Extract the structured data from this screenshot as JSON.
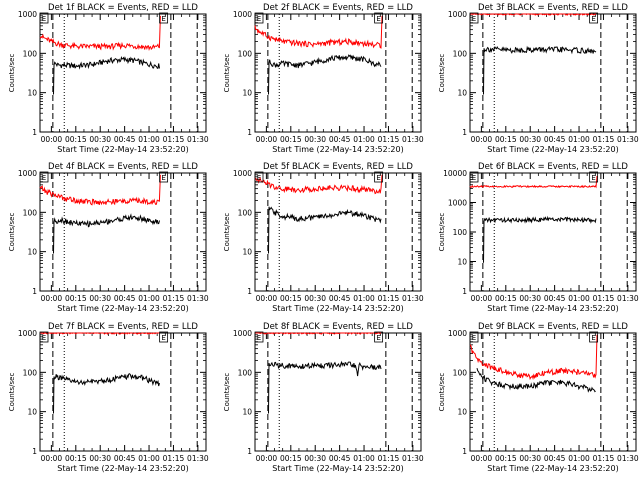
{
  "figure": {
    "x_axis_label": "Start Time (22-May-14 23:52:20)",
    "y_axis_label": "Counts/sec",
    "x_tick_labels": [
      "00:00",
      "00:15",
      "00:30",
      "00:45",
      "01:00",
      "01:15",
      "01:30"
    ],
    "y_tick_labels": [
      "1",
      "10",
      "100",
      "1000"
    ],
    "flag_labels": [
      "E",
      "E"
    ],
    "colors": {
      "events": "#000000",
      "lld": "#ff0000",
      "background": "#ffffff"
    }
  },
  "chart_data": [
    {
      "type": "line",
      "title": "Det 1f BLACK = Events, RED = LLD",
      "xlim": [
        -7,
        95
      ],
      "ylim": [
        1,
        1000
      ],
      "yscale": "log",
      "vlines": {
        "dashed": [
          0.9,
          73.4,
          89.6
        ],
        "dotted": [
          7.9
        ]
      },
      "series": [
        {
          "color": "#000000",
          "start_min": 1.6,
          "end_min": 66.5,
          "spike_to": 9,
          "x": [
            2.5,
            4,
            8,
            15,
            25,
            35,
            45,
            52,
            58,
            63,
            66
          ],
          "y": [
            55,
            50,
            50,
            48,
            52,
            65,
            70,
            65,
            55,
            50,
            48
          ]
        },
        {
          "color": "#ff0000",
          "start_min": -7,
          "end_min": 66.5,
          "rise_to": 900,
          "x": [
            -7,
            -5,
            -2,
            0,
            5,
            10,
            15,
            25,
            35,
            45,
            55,
            62,
            66
          ],
          "y": [
            300,
            250,
            220,
            200,
            170,
            160,
            150,
            150,
            150,
            160,
            150,
            140,
            150
          ]
        }
      ]
    },
    {
      "type": "line",
      "title": "Det 2f BLACK = Events, RED = LLD",
      "xlim": [
        -7,
        95
      ],
      "ylim": [
        1,
        1000
      ],
      "yscale": "log",
      "vlines": {
        "dashed": [
          0.9,
          73.4,
          89.6
        ],
        "dotted": [
          7.9
        ]
      },
      "series": [
        {
          "color": "#000000",
          "start_min": 1.6,
          "end_min": 70.5,
          "spike_to": 9,
          "x": [
            2.5,
            5,
            10,
            20,
            30,
            40,
            50,
            60,
            66,
            70
          ],
          "y": [
            60,
            50,
            55,
            50,
            60,
            75,
            80,
            70,
            55,
            50
          ]
        },
        {
          "color": "#ff0000",
          "start_min": -7,
          "end_min": 70.5,
          "rise_to": 900,
          "x": [
            -7,
            -4,
            0,
            5,
            10,
            20,
            30,
            40,
            50,
            60,
            70
          ],
          "y": [
            450,
            350,
            280,
            230,
            200,
            180,
            170,
            190,
            200,
            180,
            160
          ]
        }
      ]
    },
    {
      "type": "line",
      "title": "Det 3f BLACK = Events, RED = LLD",
      "xlim": [
        -7,
        95
      ],
      "ylim": [
        1,
        1000
      ],
      "yscale": "log",
      "vlines": {
        "dashed": [
          0.9,
          73.4,
          89.6
        ],
        "dotted": [
          7.9
        ]
      },
      "series": [
        {
          "color": "#000000",
          "start_min": 1.6,
          "end_min": 70.5,
          "spike_to": 9,
          "x": [
            2.5,
            10,
            20,
            30,
            40,
            50,
            60,
            70
          ],
          "y": [
            130,
            125,
            120,
            125,
            125,
            125,
            120,
            110
          ]
        },
        {
          "color": "#ff0000",
          "start_min": -7,
          "end_min": 70.5,
          "x": [
            -7,
            70
          ],
          "y": [
            1000,
            1000
          ]
        }
      ]
    },
    {
      "type": "line",
      "title": "Det 4f BLACK = Events, RED = LLD",
      "xlim": [
        -7,
        95
      ],
      "ylim": [
        1,
        1000
      ],
      "yscale": "log",
      "vlines": {
        "dashed": [
          0.9,
          73.4,
          89.6
        ],
        "dotted": [
          7.9
        ]
      },
      "series": [
        {
          "color": "#000000",
          "start_min": 1.6,
          "end_min": 66.5,
          "spike_to": 9,
          "x": [
            2.5,
            6,
            12,
            20,
            30,
            40,
            48,
            55,
            62,
            66
          ],
          "y": [
            60,
            65,
            55,
            50,
            55,
            65,
            75,
            70,
            60,
            55
          ]
        },
        {
          "color": "#ff0000",
          "start_min": -7,
          "end_min": 66.5,
          "rise_to": 900,
          "x": [
            -7,
            -4,
            0,
            5,
            10,
            20,
            30,
            40,
            50,
            60,
            66
          ],
          "y": [
            450,
            350,
            300,
            250,
            220,
            190,
            180,
            190,
            200,
            190,
            180
          ]
        }
      ]
    },
    {
      "type": "line",
      "title": "Det 5f BLACK = Events, RED = LLD",
      "xlim": [
        -7,
        95
      ],
      "ylim": [
        1,
        1000
      ],
      "yscale": "log",
      "vlines": {
        "dashed": [
          0.9,
          73.4,
          89.6
        ],
        "dotted": [
          7.9
        ]
      },
      "series": [
        {
          "color": "#000000",
          "start_min": 1.6,
          "end_min": 70.5,
          "spike_to": 9,
          "x": [
            2.5,
            5,
            10,
            20,
            30,
            40,
            50,
            60,
            66,
            70
          ],
          "y": [
            120,
            100,
            80,
            70,
            75,
            85,
            100,
            85,
            70,
            60
          ]
        },
        {
          "color": "#ff0000",
          "start_min": -7,
          "end_min": 70.5,
          "rise_to": 900,
          "x": [
            -7,
            -4,
            0,
            5,
            10,
            20,
            30,
            40,
            50,
            60,
            70
          ],
          "y": [
            800,
            650,
            550,
            450,
            400,
            380,
            400,
            430,
            420,
            380,
            350
          ]
        }
      ]
    },
    {
      "type": "line",
      "title": "Det 6f BLACK = Events, RED = LLD",
      "xlim": [
        -7,
        95
      ],
      "ylim": [
        1,
        10000
      ],
      "yscale": "log",
      "vlines": {
        "dashed": [
          0.9,
          73.4,
          89.6
        ],
        "dotted": [
          7.9
        ]
      },
      "series": [
        {
          "color": "#000000",
          "start_min": 1.6,
          "end_min": 70.5,
          "spike_to": 9,
          "x": [
            2.5,
            10,
            20,
            30,
            40,
            50,
            60,
            70
          ],
          "y": [
            250,
            260,
            250,
            260,
            270,
            270,
            260,
            250
          ]
        },
        {
          "color": "#ff0000",
          "start_min": -7,
          "end_min": 70.5,
          "rise_to": 8000,
          "x": [
            -7,
            70
          ],
          "y": [
            3500,
            3500
          ]
        }
      ]
    },
    {
      "type": "line",
      "title": "Det 7f BLACK = Events, RED = LLD",
      "xlim": [
        -7,
        95
      ],
      "ylim": [
        1,
        1000
      ],
      "yscale": "log",
      "vlines": {
        "dashed": [
          0.9,
          73.4,
          89.6
        ],
        "dotted": [
          7.9
        ]
      },
      "series": [
        {
          "color": "#000000",
          "start_min": 1.6,
          "end_min": 66.5,
          "spike_to": 9,
          "x": [
            2.5,
            6,
            12,
            20,
            30,
            40,
            48,
            55,
            62,
            66
          ],
          "y": [
            80,
            70,
            60,
            55,
            60,
            70,
            80,
            75,
            60,
            50
          ]
        },
        {
          "color": "#ff0000",
          "start_min": -7,
          "end_min": 66.5,
          "x": [
            -7,
            66
          ],
          "y": [
            1000,
            1000
          ]
        }
      ]
    },
    {
      "type": "line",
      "title": "Det 8f BLACK = Events, RED = LLD",
      "xlim": [
        -7,
        95
      ],
      "ylim": [
        1,
        1000
      ],
      "yscale": "log",
      "vlines": {
        "dashed": [
          0.9,
          73.4,
          89.6
        ],
        "dotted": [
          7.9
        ]
      },
      "series": [
        {
          "color": "#000000",
          "start_min": 1.6,
          "end_min": 70.5,
          "spike_to": 9,
          "x": [
            2.5,
            10,
            20,
            30,
            40,
            50,
            55,
            56,
            57,
            60,
            70
          ],
          "y": [
            160,
            150,
            140,
            150,
            150,
            160,
            150,
            70,
            150,
            140,
            130
          ]
        },
        {
          "color": "#ff0000",
          "start_min": -7,
          "end_min": 70.5,
          "x": [
            -7,
            70
          ],
          "y": [
            1000,
            1000
          ]
        }
      ]
    },
    {
      "type": "line",
      "title": "Det 9f BLACK = Events, RED = LLD",
      "xlim": [
        -7,
        95
      ],
      "ylim": [
        1,
        1000
      ],
      "yscale": "log",
      "vlines": {
        "dashed": [
          0.9,
          73.4,
          89.6
        ],
        "dotted": [
          7.9
        ]
      },
      "series": [
        {
          "color": "#000000",
          "start_min": -2.7,
          "end_min": 70.5,
          "x": [
            -2.7,
            0,
            5,
            10,
            20,
            30,
            40,
            50,
            60,
            70
          ],
          "y": [
            120,
            80,
            60,
            50,
            45,
            45,
            55,
            55,
            45,
            35
          ]
        },
        {
          "color": "#ff0000",
          "start_min": -7,
          "end_min": 70.5,
          "rise_to": 900,
          "x": [
            -7,
            -5,
            -2,
            0,
            5,
            10,
            20,
            30,
            40,
            50,
            60,
            70
          ],
          "y": [
            500,
            300,
            200,
            160,
            140,
            120,
            90,
            80,
            100,
            110,
            100,
            85
          ]
        }
      ]
    }
  ]
}
